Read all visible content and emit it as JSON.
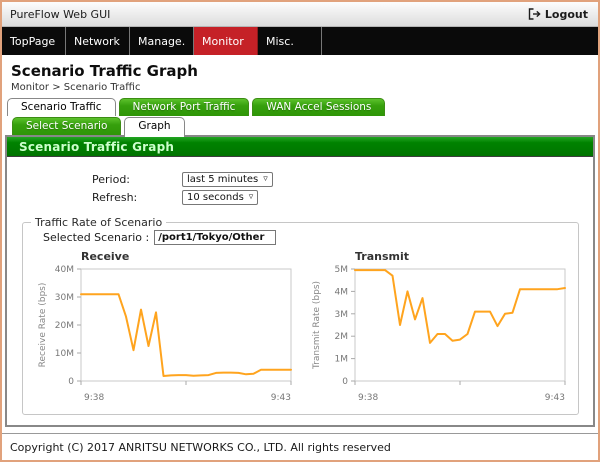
{
  "window": {
    "title": "PureFlow Web GUI",
    "logout_label": "Logout"
  },
  "nav": {
    "items": [
      {
        "label": "TopPage",
        "active": false
      },
      {
        "label": "Network",
        "active": false
      },
      {
        "label": "Manage.",
        "active": false
      },
      {
        "label": "Monitor",
        "active": true
      },
      {
        "label": "Misc.",
        "active": false
      }
    ]
  },
  "page": {
    "title": "Scenario Traffic Graph",
    "breadcrumb": "Monitor > Scenario Traffic"
  },
  "tabs_primary": [
    {
      "label": "Scenario Traffic",
      "active": true
    },
    {
      "label": "Network Port Traffic",
      "active": false
    },
    {
      "label": "WAN Accel Sessions",
      "active": false
    }
  ],
  "tabs_secondary": [
    {
      "label": "Select Scenario",
      "active": false
    },
    {
      "label": "Graph",
      "active": true
    }
  ],
  "section": {
    "header": "Scenario Traffic Graph"
  },
  "form": {
    "period_label": "Period:",
    "period_value": "last 5 minutes",
    "refresh_label": "Refresh:",
    "refresh_value": "10 seconds"
  },
  "traffic": {
    "legend": "Traffic Rate of Scenario",
    "selected_scenario_label": "Selected Scenario :",
    "selected_scenario_value": "/port1/Tokyo/Other"
  },
  "footer": {
    "copyright": "Copyright (C) 2017 ANRITSU NETWORKS CO., LTD. All rights reserved"
  },
  "colors": {
    "window_border": "#e1a27c",
    "nav_active_red": "#c52127",
    "tab_green": "#36a00d",
    "section_green": "#008200",
    "chart_line_orange": "#ffa41e"
  },
  "chart_data": [
    {
      "type": "line",
      "title": "Receive",
      "ylabel": "Receive Rate (bps)",
      "x_tick_labels": [
        "9:38",
        "9:43"
      ],
      "y_tick_labels": [
        "0",
        "10M",
        "20M",
        "30M",
        "40M"
      ],
      "ylim_mbps": [
        0,
        40
      ],
      "values_mbps": [
        31,
        31,
        31,
        31,
        31,
        31,
        23,
        11,
        25.5,
        12.5,
        24.5,
        1.8,
        2,
        2.1,
        2.1,
        1.9,
        2,
        2.1,
        2.9,
        3,
        3,
        2.9,
        2.4,
        2.6,
        4,
        4,
        4,
        4,
        4
      ],
      "line_color": "#ffa41e"
    },
    {
      "type": "line",
      "title": "Transmit",
      "ylabel": "Transmit Rate (bps)",
      "x_tick_labels": [
        "9:38",
        "9:43"
      ],
      "y_tick_labels": [
        "0",
        "1M",
        "2M",
        "3M",
        "4M",
        "5M"
      ],
      "ylim_mbps": [
        0,
        5
      ],
      "values_mbps": [
        4.95,
        4.95,
        4.95,
        4.95,
        4.95,
        4.7,
        2.5,
        4,
        2.75,
        3.7,
        1.7,
        2.1,
        2.1,
        1.8,
        1.85,
        2.1,
        3.1,
        3.1,
        3.1,
        2.45,
        3,
        3.05,
        4.1,
        4.1,
        4.1,
        4.1,
        4.1,
        4.1,
        4.15
      ],
      "line_color": "#ffa41e"
    }
  ]
}
